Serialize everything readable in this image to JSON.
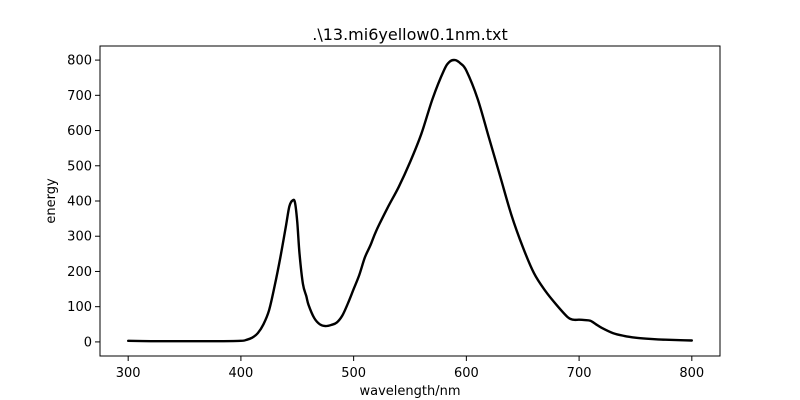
{
  "chart_data": {
    "type": "line",
    "title": ".\\13.mi6yellow0.1nm.txt",
    "xlabel": "wavelength/nm",
    "ylabel": "energy",
    "xlim": [
      275,
      825
    ],
    "ylim": [
      -40,
      840
    ],
    "xticks": [
      300,
      400,
      500,
      600,
      700,
      800
    ],
    "yticks": [
      0,
      100,
      200,
      300,
      400,
      500,
      600,
      700,
      800
    ],
    "grid": false,
    "line_color": "#000000",
    "series": [
      {
        "x": [
          300,
          320,
          340,
          360,
          380,
          400,
          405,
          410,
          415,
          420,
          425,
          430,
          435,
          440,
          443,
          446,
          448,
          450,
          452,
          455,
          458,
          460,
          465,
          470,
          475,
          480,
          485,
          490,
          495,
          500,
          505,
          510,
          515,
          520,
          530,
          540,
          550,
          560,
          570,
          580,
          585,
          590,
          595,
          600,
          610,
          620,
          630,
          640,
          650,
          660,
          670,
          680,
          690,
          695,
          700,
          705,
          710,
          715,
          720,
          730,
          740,
          750,
          760,
          770,
          780,
          790,
          800
        ],
        "y": [
          3,
          2,
          2,
          2,
          2,
          3,
          6,
          12,
          25,
          50,
          90,
          160,
          240,
          330,
          385,
          402,
          395,
          340,
          250,
          165,
          130,
          105,
          68,
          50,
          45,
          48,
          55,
          75,
          110,
          150,
          190,
          240,
          275,
          315,
          380,
          440,
          510,
          590,
          690,
          770,
          795,
          800,
          790,
          770,
          690,
          580,
          470,
          360,
          270,
          195,
          145,
          105,
          70,
          63,
          63,
          62,
          60,
          50,
          40,
          25,
          17,
          12,
          9,
          7,
          6,
          5,
          4
        ]
      }
    ]
  }
}
